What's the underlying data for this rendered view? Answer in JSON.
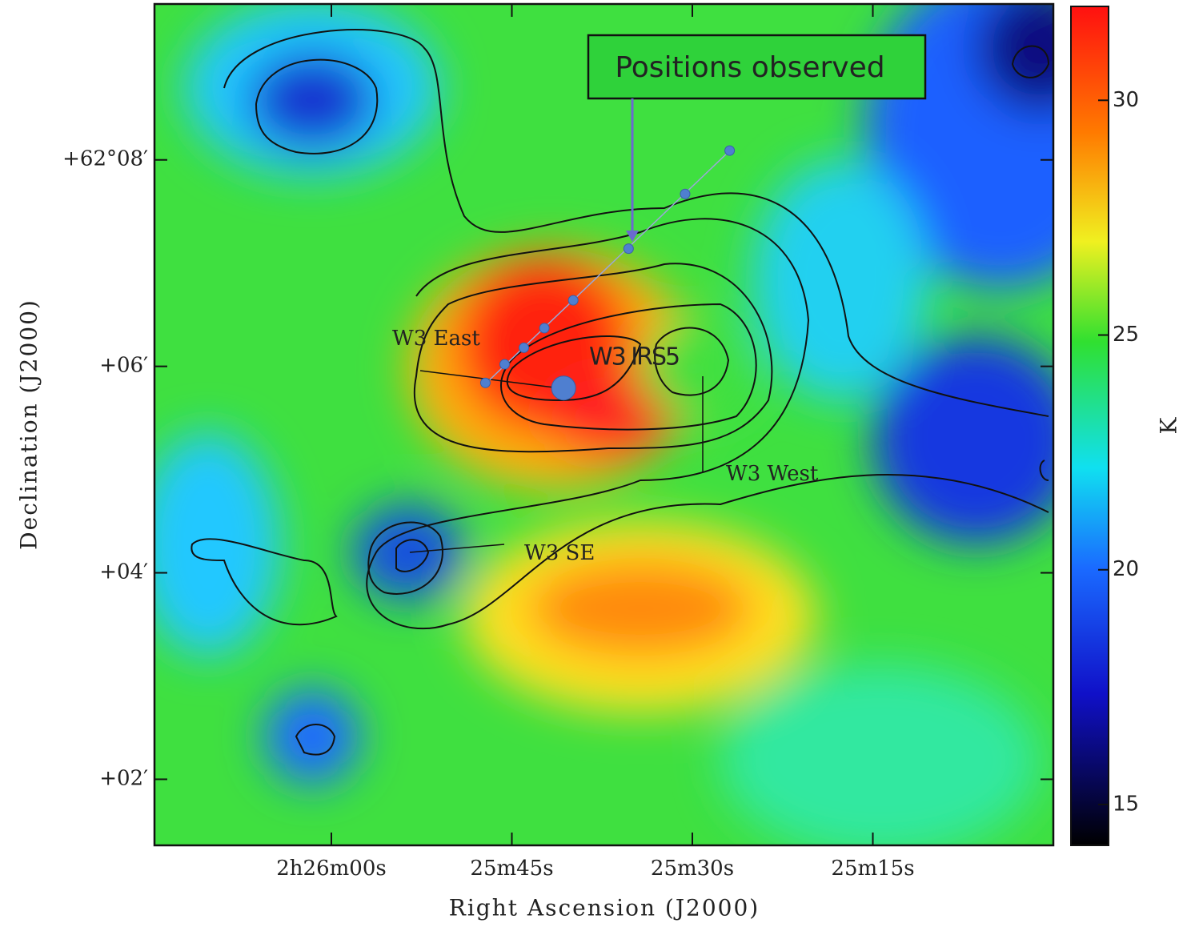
{
  "chart_data": {
    "type": "scatter",
    "xlabel": "Right Ascension (J2000)",
    "ylabel": "Declination (J2000)",
    "xlim": [
      74.7,
      0
    ],
    "ylim": [
      1.36,
      9.51
    ],
    "xticks": [
      {
        "value": 60,
        "label": "2h26m00s"
      },
      {
        "value": 45,
        "label": "25m45s"
      },
      {
        "value": 30,
        "label": "25m30s"
      },
      {
        "value": 15,
        "label": "25m15s"
      }
    ],
    "yticks": [
      {
        "value": 8,
        "label": "+62°08′"
      },
      {
        "value": 6,
        "label": "+06′"
      },
      {
        "value": 4,
        "label": "+04′"
      },
      {
        "value": 2,
        "label": "+02′"
      }
    ],
    "series": [
      {
        "color": "#4f7fd0",
        "size": 6,
        "x": [
          26.9,
          30.6,
          35.3,
          39.9,
          42.3,
          44.0,
          45.6,
          47.2
        ],
        "values": [
          8.09,
          7.67,
          7.14,
          6.64,
          6.37,
          6.18,
          6.02,
          5.84
        ]
      },
      {
        "color": "#4f7fd0",
        "size": 15,
        "x": [
          40.7
        ],
        "values": [
          5.79
        ]
      }
    ],
    "colorbar": {
      "label": "K",
      "lim": [
        14.13,
        32.0
      ],
      "ticks": [
        15,
        20,
        25,
        30
      ]
    },
    "annotations": {
      "positions": "Positions observed",
      "east": "W3 East",
      "irs5": "W3 IRS5",
      "west": "W3 West",
      "se": "W3 SE"
    }
  }
}
